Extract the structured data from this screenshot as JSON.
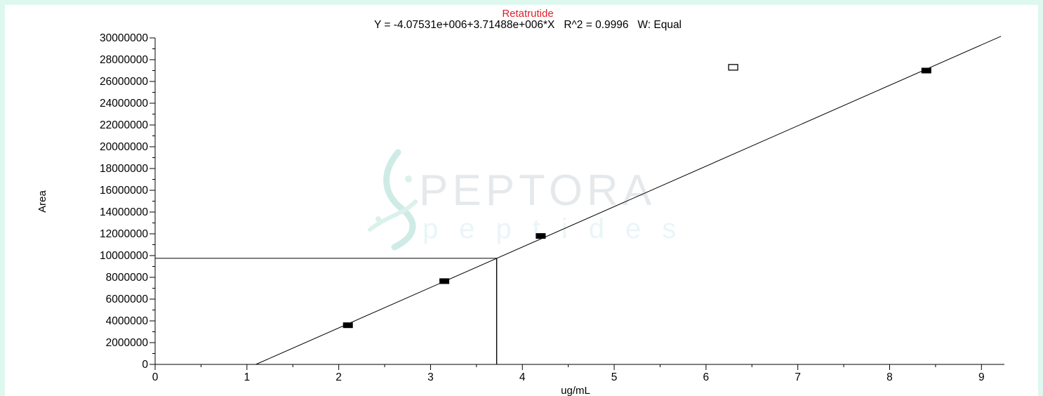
{
  "chart_data": {
    "type": "scatter",
    "title": "Retatrutide",
    "subtitle": "Y = -4.07531e+006+3.71488e+006*X   R^2 = 0.9996   W: Equal",
    "xlabel": "ug/mL",
    "ylabel": "Area",
    "xlim": [
      0,
      9.25
    ],
    "ylim": [
      0,
      30000000
    ],
    "x_ticks": [
      "0",
      "1",
      "2",
      "3",
      "4",
      "5",
      "6",
      "7",
      "8",
      "9"
    ],
    "y_ticks": [
      "0",
      "2000000",
      "4000000",
      "6000000",
      "8000000",
      "10000000",
      "12000000",
      "14000000",
      "16000000",
      "18000000",
      "20000000",
      "22000000",
      "24000000",
      "26000000",
      "28000000",
      "30000000"
    ],
    "grid": false,
    "legend": "none",
    "fit": {
      "intercept": -4075310,
      "slope": 3714880
    },
    "series": [
      {
        "marker": "filled-square",
        "points": [
          {
            "x": 2.1,
            "y": 3600000
          },
          {
            "x": 3.15,
            "y": 7650000
          },
          {
            "x": 4.2,
            "y": 11800000
          },
          {
            "x": 8.4,
            "y": 27000000
          }
        ]
      },
      {
        "marker": "open-square",
        "points": [
          {
            "x": 6.3,
            "y": 27300000
          }
        ]
      }
    ],
    "sample": {
      "x": 3.72,
      "y": 9750000
    },
    "colors": {
      "title": "#e0202a",
      "text": "#000000",
      "line": "#000000",
      "background": "#dff8ef"
    }
  },
  "watermark": {
    "brand": "PEPTORA",
    "tagline": "peptides"
  }
}
